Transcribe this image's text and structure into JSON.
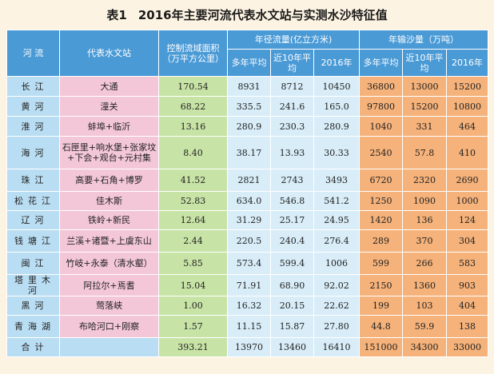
{
  "title": {
    "label": "表1",
    "text": "2016年主要河流代表水文站与实测水沙特征值"
  },
  "header": {
    "river": "河 流",
    "station": "代表水文站",
    "area": "控制流域面积（万平方公里）",
    "runoff_group": "年径流量(亿立方米)",
    "sediment_group": "年输沙量（万吨）",
    "runoff_sub": [
      "多年平均",
      "近10年平均",
      "2016年"
    ],
    "sediment_sub": [
      "多年平均",
      "近10年平均",
      "2016年"
    ]
  },
  "rows": [
    {
      "river": "长江",
      "station": "大通",
      "area": "170.54",
      "r1": "8931",
      "r2": "8712",
      "r3": "10450",
      "s1": "36800",
      "s2": "13000",
      "s3": "15200"
    },
    {
      "river": "黄河",
      "station": "潼关",
      "area": "68.22",
      "r1": "335.5",
      "r2": "241.6",
      "r3": "165.0",
      "s1": "97800",
      "s2": "15200",
      "s3": "10800"
    },
    {
      "river": "淮河",
      "station": "蚌埠+临沂",
      "area": "13.16",
      "r1": "280.9",
      "r2": "230.3",
      "r3": "280.9",
      "s1": "1040",
      "s2": "331",
      "s3": "464"
    },
    {
      "river": "海河",
      "station": "石匣里+响水堡+张家坟+下会+观台+元村集",
      "area": "8.40",
      "r1": "38.17",
      "r2": "13.93",
      "r3": "30.33",
      "s1": "2540",
      "s2": "57.8",
      "s3": "410"
    },
    {
      "river": "珠江",
      "station": "高要+石角+博罗",
      "area": "41.52",
      "r1": "2821",
      "r2": "2743",
      "r3": "3493",
      "s1": "6720",
      "s2": "2320",
      "s3": "2690"
    },
    {
      "river": "松花江",
      "station": "佳木斯",
      "area": "52.83",
      "r1": "634.0",
      "r2": "546.8",
      "r3": "541.2",
      "s1": "1250",
      "s2": "1090",
      "s3": "1000"
    },
    {
      "river": "辽河",
      "station": "铁岭+新民",
      "area": "12.64",
      "r1": "31.29",
      "r2": "25.17",
      "r3": "24.95",
      "s1": "1420",
      "s2": "136",
      "s3": "124"
    },
    {
      "river": "钱塘江",
      "station": "兰溪+诸暨+上虞东山",
      "area": "2.44",
      "r1": "220.5",
      "r2": "240.4",
      "r3": "276.4",
      "s1": "289",
      "s2": "370",
      "s3": "304"
    },
    {
      "river": "闽江",
      "station": "竹岐+永泰（清水壑）",
      "area": "5.85",
      "r1": "573.4",
      "r2": "599.4",
      "r3": "1006",
      "s1": "599",
      "s2": "266",
      "s3": "583"
    },
    {
      "river": "塔里木河",
      "station": "阿拉尔+焉耆",
      "area": "15.04",
      "r1": "71.91",
      "r2": "68.90",
      "r3": "92.02",
      "s1": "2150",
      "s2": "1360",
      "s3": "903"
    },
    {
      "river": "黑河",
      "station": "莺落峡",
      "area": "1.00",
      "r1": "16.32",
      "r2": "20.15",
      "r3": "22.62",
      "s1": "199",
      "s2": "103",
      "s3": "404"
    },
    {
      "river": "青海湖",
      "station": "布哈河口+刚察",
      "area": "1.57",
      "r1": "11.15",
      "r2": "15.87",
      "r3": "27.80",
      "s1": "44.8",
      "s2": "59.9",
      "s3": "138"
    }
  ],
  "total": {
    "river": "合计",
    "area": "393.21",
    "r1": "13970",
    "r2": "13460",
    "r3": "16410",
    "s1": "151000",
    "s2": "34300",
    "s3": "33000"
  }
}
